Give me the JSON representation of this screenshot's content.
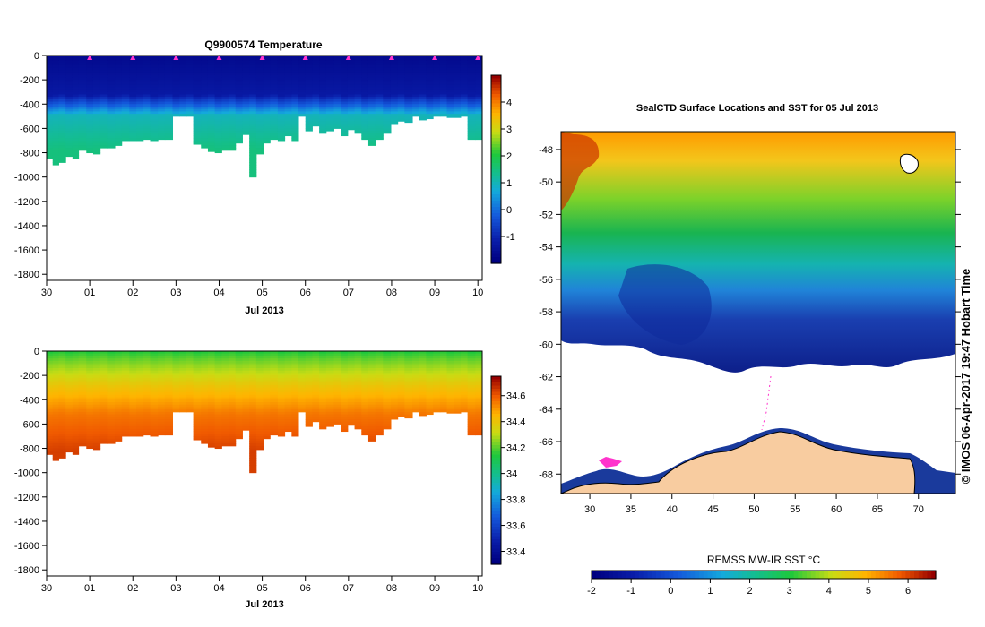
{
  "chart_data": [
    {
      "id": "temp",
      "type": "heatmap",
      "title": "Q9900574  Temperature",
      "xlabel": "Jul 2013",
      "ylabel": "",
      "x_ticks": [
        "30",
        "01",
        "02",
        "03",
        "04",
        "05",
        "06",
        "07",
        "08",
        "09",
        "10"
      ],
      "xlim": [
        0,
        10.1
      ],
      "ylim": [
        -1850,
        0
      ],
      "y_ticks": [
        0,
        -200,
        -400,
        -600,
        -800,
        -1000,
        -1200,
        -1400,
        -1600,
        -1800
      ],
      "profile_times": [
        0.0,
        0.14,
        0.28,
        0.44,
        0.6,
        0.74,
        0.92,
        1.08,
        1.24,
        1.4,
        1.58,
        1.74,
        1.92,
        2.08,
        2.24,
        2.4,
        2.58,
        2.74,
        2.92,
        3.08,
        3.24,
        3.4,
        3.58,
        3.74,
        3.9,
        4.06,
        4.22,
        4.38,
        4.54,
        4.7,
        4.86,
        5.02,
        5.18,
        5.36,
        5.52,
        5.68,
        5.84,
        6.0,
        6.16,
        6.32,
        6.48,
        6.66,
        6.82,
        6.98,
        7.14,
        7.3,
        7.46,
        7.62,
        7.8,
        7.98,
        8.14,
        8.3,
        8.48,
        8.64,
        8.8,
        8.96,
        9.12,
        9.28,
        9.44,
        9.6,
        9.76,
        9.94
      ],
      "profile_max_depth": [
        850,
        900,
        880,
        830,
        850,
        780,
        800,
        810,
        760,
        760,
        740,
        700,
        700,
        700,
        690,
        700,
        690,
        690,
        500,
        500,
        500,
        730,
        760,
        790,
        800,
        780,
        780,
        720,
        650,
        1000,
        810,
        720,
        690,
        700,
        660,
        700,
        500,
        620,
        580,
        640,
        620,
        600,
        660,
        610,
        640,
        690,
        740,
        690,
        640,
        560,
        540,
        550,
        500,
        530,
        520,
        500,
        500,
        510,
        510,
        500,
        690,
        690
      ],
      "colorbar": {
        "ticks": [
          4,
          3,
          2,
          1,
          0,
          -1
        ],
        "range": [
          -2,
          5
        ]
      },
      "markers": "profile-location-triangles"
    },
    {
      "id": "sal",
      "type": "heatmap",
      "title": "",
      "xlabel": "Jul 2013",
      "ylabel": "",
      "x_ticks": [
        "30",
        "01",
        "02",
        "03",
        "04",
        "05",
        "06",
        "07",
        "08",
        "09",
        "10"
      ],
      "xlim": [
        0,
        10.1
      ],
      "ylim": [
        -1850,
        0
      ],
      "y_ticks": [
        0,
        -200,
        -400,
        -600,
        -800,
        -1000,
        -1200,
        -1400,
        -1600,
        -1800
      ],
      "colorbar": {
        "ticks": [
          "34.6",
          "34.4",
          "34.2",
          "34",
          "33.8",
          "33.6",
          "33.4"
        ],
        "range": [
          33.3,
          34.75
        ]
      }
    },
    {
      "id": "map",
      "type": "heatmap",
      "title": "SealCTD Surface Locations and SST for 05 Jul 2013",
      "xlabel": "",
      "ylabel": "",
      "x_ticks": [
        30,
        35,
        40,
        45,
        50,
        55,
        60,
        65,
        70
      ],
      "y_ticks": [
        -48,
        -50,
        -52,
        -54,
        -56,
        -58,
        -60,
        -62,
        -64,
        -66,
        -68
      ],
      "xlim": [
        26.5,
        74.5
      ],
      "ylim": [
        -69.2,
        -46.9
      ],
      "colorbar": {
        "label": "REMSS MW-IR SST °C",
        "ticks": [
          -2,
          -1,
          0,
          1,
          2,
          3,
          4,
          5,
          6
        ],
        "range": [
          -2,
          6.7
        ]
      },
      "side_label": "© IMOS 06-Apr-2017 19:47 Hobart Time"
    }
  ]
}
